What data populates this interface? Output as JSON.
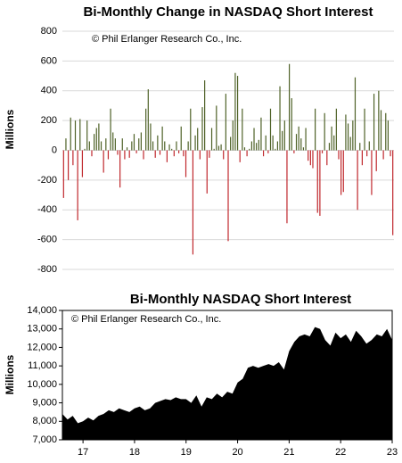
{
  "chart_data": [
    {
      "type": "bar",
      "title": "Bi-Monthly Change in NASDAQ Short Interest",
      "note": "© Phil Erlanger Research Co., Inc.",
      "y_label": "Millions",
      "positive_color": "#4f6228",
      "negative_color": "#c0282d",
      "values": [
        -320,
        80,
        -200,
        220,
        -100,
        200,
        -470,
        210,
        -180,
        10,
        200,
        60,
        -40,
        110,
        150,
        180,
        60,
        -150,
        80,
        -60,
        280,
        120,
        80,
        -30,
        -250,
        80,
        -60,
        20,
        -50,
        60,
        110,
        -20,
        80,
        120,
        -60,
        280,
        410,
        180,
        60,
        -50,
        100,
        -30,
        160,
        60,
        -80,
        40,
        10,
        -40,
        60,
        -20,
        160,
        -40,
        -180,
        60,
        280,
        -700,
        100,
        150,
        -60,
        290,
        470,
        -290,
        -50,
        150,
        10,
        300,
        30,
        40,
        -60,
        380,
        -610,
        90,
        200,
        520,
        500,
        -80,
        280,
        20,
        -40,
        10,
        60,
        150,
        50,
        70,
        220,
        -40,
        100,
        -20,
        280,
        100,
        10,
        60,
        430,
        130,
        200,
        -490,
        580,
        350,
        -20,
        110,
        160,
        80,
        20,
        150,
        -70,
        -100,
        -120,
        280,
        -420,
        -440,
        -20,
        250,
        -100,
        50,
        160,
        100,
        280,
        -60,
        -300,
        -280,
        240,
        180,
        90,
        200,
        490,
        -400,
        50,
        -100,
        280,
        -40,
        60,
        -300,
        380,
        -140,
        400,
        270,
        -60,
        250,
        200,
        -40,
        -570
      ],
      "ylim": [
        -800,
        800
      ],
      "yticks": [
        -800,
        -600,
        -400,
        -200,
        0,
        200,
        400,
        600,
        800
      ],
      "grid": true
    },
    {
      "type": "area",
      "title": "Bi-Monthly NASDAQ Short Interest",
      "note": "© Phil Erlanger Research Co., Inc.",
      "y_label": "Millions",
      "color": "#000000",
      "x": [
        16.6,
        16.7,
        16.8,
        16.9,
        17.0,
        17.1,
        17.2,
        17.3,
        17.4,
        17.5,
        17.6,
        17.7,
        17.8,
        17.9,
        18.0,
        18.1,
        18.2,
        18.3,
        18.4,
        18.5,
        18.6,
        18.7,
        18.8,
        18.9,
        19.0,
        19.1,
        19.2,
        19.3,
        19.4,
        19.5,
        19.6,
        19.7,
        19.8,
        19.9,
        20.0,
        20.1,
        20.2,
        20.3,
        20.4,
        20.5,
        20.6,
        20.7,
        20.8,
        20.9,
        21.0,
        21.1,
        21.2,
        21.3,
        21.4,
        21.5,
        21.6,
        21.7,
        21.8,
        21.9,
        22.0,
        22.1,
        22.2,
        22.3,
        22.4,
        22.5,
        22.6,
        22.7,
        22.8,
        22.9,
        23.0
      ],
      "values": [
        8400,
        8100,
        8300,
        7900,
        8000,
        8200,
        8050,
        8300,
        8400,
        8600,
        8500,
        8700,
        8600,
        8500,
        8700,
        8800,
        8600,
        8700,
        9000,
        9100,
        9200,
        9150,
        9300,
        9200,
        9200,
        9000,
        9400,
        8800,
        9300,
        9200,
        9500,
        9300,
        9600,
        9500,
        10100,
        10300,
        10900,
        11000,
        10900,
        11000,
        11100,
        11000,
        11200,
        10800,
        11800,
        12300,
        12600,
        12700,
        12600,
        13100,
        13000,
        12400,
        12100,
        12800,
        12500,
        12700,
        12300,
        12900,
        12600,
        12200,
        12400,
        12700,
        12600,
        13000,
        12400
      ],
      "xlim": [
        16.6,
        23.0
      ],
      "xticks": [
        17,
        18,
        19,
        20,
        21,
        22,
        23
      ],
      "ylim": [
        7000,
        14000
      ],
      "yticks": [
        {
          "value": 7000,
          "label": "7,000"
        },
        {
          "value": 8000,
          "label": "8,000"
        },
        {
          "value": 9000,
          "label": "9,000"
        },
        {
          "value": 10000,
          "label": "10,000"
        },
        {
          "value": 11000,
          "label": "11,000"
        },
        {
          "value": 12000,
          "label": "12,000"
        },
        {
          "value": 13000,
          "label": "13,000"
        },
        {
          "value": 14000,
          "label": "14,000"
        }
      ]
    }
  ]
}
